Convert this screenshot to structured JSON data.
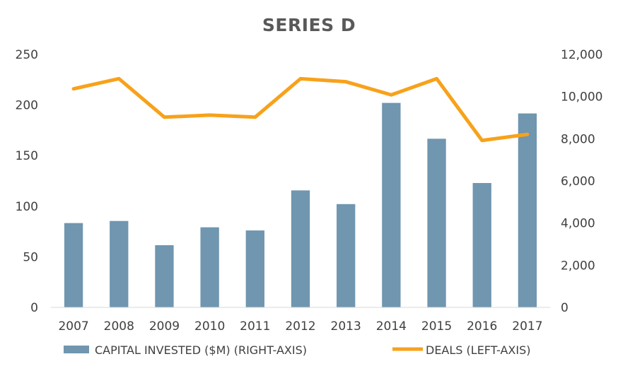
{
  "chart_data": {
    "type": "bar",
    "title": "SERIES D",
    "categories": [
      "2007",
      "2008",
      "2009",
      "2010",
      "2011",
      "2012",
      "2013",
      "2014",
      "2015",
      "2016",
      "2017"
    ],
    "series": [
      {
        "name": "CAPITAL INVESTED ($M) (RIGHT-AXIS)",
        "type": "bar",
        "axis": "right",
        "color": "#7096B0",
        "values": [
          4000,
          4100,
          2950,
          3800,
          3650,
          5550,
          4900,
          9700,
          8000,
          5900,
          9200
        ]
      },
      {
        "name": "DEALS (LEFT-AXIS)",
        "type": "line",
        "axis": "left",
        "color": "#F7A21B",
        "values": [
          216,
          226,
          188,
          190,
          188,
          226,
          223,
          210,
          226,
          165,
          171
        ]
      }
    ],
    "left_axis": {
      "min": 0,
      "max": 250,
      "ticks": [
        "0",
        "50",
        "100",
        "150",
        "200",
        "250"
      ]
    },
    "right_axis": {
      "min": 0,
      "max": 12000,
      "ticks": [
        "0",
        "2,000",
        "4,000",
        "6,000",
        "8,000",
        "10,000",
        "12,000"
      ]
    },
    "grid": false,
    "legend": "bottom"
  }
}
